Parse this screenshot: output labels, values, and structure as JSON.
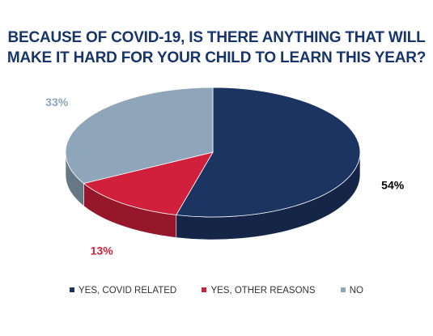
{
  "chart_data": {
    "type": "pie",
    "title_lines": [
      "BECAUSE OF COVID-19, IS THERE ANYTHING THAT WILL",
      "MAKE IT HARD FOR YOUR CHILD TO LEARN THIS YEAR?"
    ],
    "categories": [
      "YES, COVID RELATED",
      "YES, OTHER REASONS",
      "NO"
    ],
    "values": [
      54,
      13,
      33
    ],
    "value_labels": [
      "54%",
      "13%",
      "33%"
    ],
    "colors": [
      "#1c3462",
      "#d1203b",
      "#8ea5ba"
    ],
    "label_colors": [
      "#000000",
      "#d1203b",
      "#8ea5ba"
    ],
    "legend_position": "bottom",
    "style": "3d-tilted"
  }
}
